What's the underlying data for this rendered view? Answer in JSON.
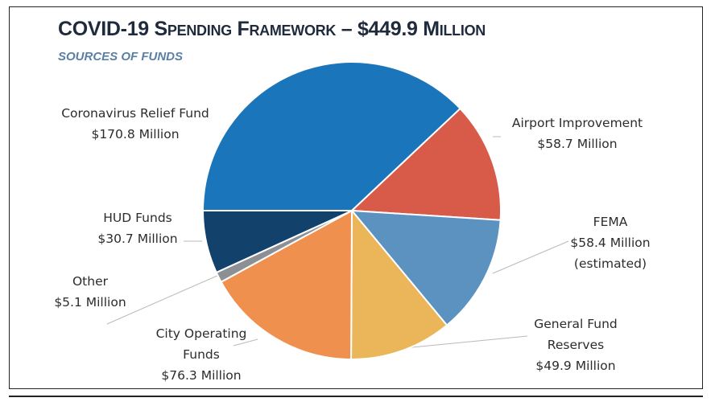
{
  "chart_data": {
    "type": "pie",
    "title": "COVID-19 Spending Framework – $449.9 Million",
    "subtitle": "Sources of Funds",
    "slices": [
      {
        "name": "Coronavirus Relief Fund",
        "amount": "$170.8 Million",
        "value": 170.8,
        "color": "#1b75bb"
      },
      {
        "name": "Airport Improvement",
        "amount": "$58.7 Million",
        "value": 58.7,
        "color": "#d85b4a"
      },
      {
        "name": "FEMA",
        "amount": "$58.4 Million",
        "note": "(estimated)",
        "value": 58.4,
        "color": "#5b92bf"
      },
      {
        "name": "General Fund Reserves",
        "amount": "$49.9 Million",
        "value": 49.9,
        "color": "#ebb55a"
      },
      {
        "name": "City Operating Funds",
        "amount": "$76.3 Million",
        "value": 76.3,
        "color": "#f0904f"
      },
      {
        "name": "Other",
        "amount": "$5.1 Million",
        "value": 5.1,
        "color": "#8c8f94"
      },
      {
        "name": "HUD Funds",
        "amount": "$30.7 Million",
        "value": 30.7,
        "color": "#12416b"
      }
    ]
  },
  "labels": {
    "crf": {
      "line1": "Coronavirus Relief Fund",
      "line2": "$170.8 Million"
    },
    "airport": {
      "line1": "Airport Improvement",
      "line2": "$58.7 Million"
    },
    "fema": {
      "line1": "FEMA",
      "line2": "$58.4 Million",
      "line3": "(estimated)"
    },
    "gfr": {
      "line1": "General Fund",
      "line2": "Reserves",
      "line3": "$49.9 Million"
    },
    "cof": {
      "line1": "City Operating",
      "line2": "Funds",
      "line3": "$76.3 Million"
    },
    "other": {
      "line1": "Other",
      "line2": "$5.1 Million"
    },
    "hud": {
      "line1": "HUD Funds",
      "line2": "$30.7 Million"
    }
  }
}
